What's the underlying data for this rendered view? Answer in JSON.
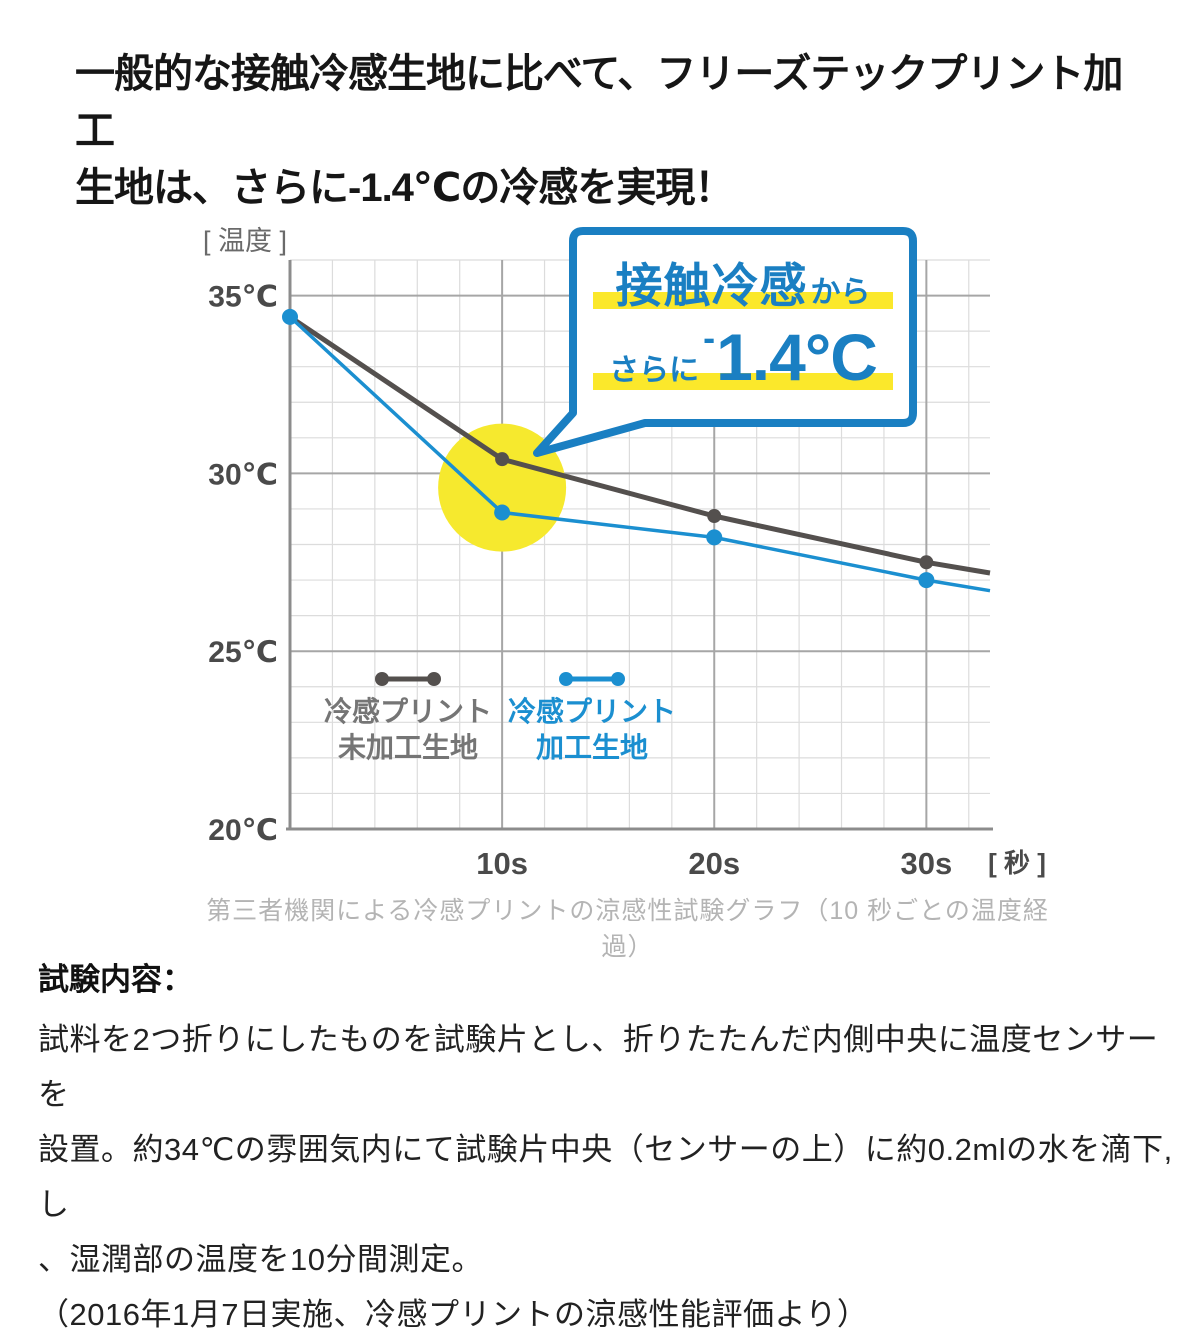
{
  "headline": {
    "lines": [
      "一般的な接触冷感生地に比べて、フリーズテックプリント加工",
      "生地は、さらに-1.4℃の冷感を実現！"
    ]
  },
  "chart_data": {
    "type": "line",
    "title": "",
    "y_unit_label": "[ 温度 ]",
    "x_unit_label": "[ 秒 ]",
    "x_range": [
      0,
      33
    ],
    "y_range": [
      20,
      36
    ],
    "x_minor_step": 2,
    "y_minor_step": 1,
    "grid": "on",
    "x_ticks": [
      {
        "value": 10,
        "label": "10s"
      },
      {
        "value": 20,
        "label": "20s"
      },
      {
        "value": 30,
        "label": "30s"
      }
    ],
    "y_ticks": [
      {
        "value": 35,
        "label": "35℃"
      },
      {
        "value": 30,
        "label": "30℃"
      },
      {
        "value": 25,
        "label": "25℃"
      },
      {
        "value": 20,
        "label": "20℃"
      }
    ],
    "series": [
      {
        "name": "冷感プリント 未加工生地",
        "color": "#54504e",
        "line_width": 5,
        "x": [
          0,
          10,
          20,
          30,
          33
        ],
        "values": [
          34.4,
          30.4,
          28.8,
          27.5,
          27.2
        ],
        "marker_x": [
          0,
          10,
          20,
          30
        ],
        "marker_radius": 7
      },
      {
        "name": "冷感プリント 加工生地",
        "color": "#1b8fd0",
        "line_width": 3.5,
        "x": [
          0,
          10,
          20,
          30,
          33
        ],
        "values": [
          34.4,
          28.9,
          28.2,
          27.0,
          26.7
        ],
        "marker_x": [
          0,
          10,
          20,
          30
        ],
        "marker_radius": 8
      }
    ],
    "highlight_circle": {
      "x": 10,
      "y": 29.6,
      "radius_px": 64,
      "color": "#f6e92e"
    },
    "legend_position": "inside-bottom-left",
    "caption": "第三者機関による冷感プリントの涼感性試験グラフ（10 秒ごとの温度経過）"
  },
  "legend": [
    {
      "line1": "冷感プリント",
      "line2": "未加工生地",
      "marker_color": "#54504e",
      "text_color": "#757575"
    },
    {
      "line1": "冷感プリント",
      "line2": "加工生地",
      "marker_color": "#1b8fd0",
      "text_color": "#1b8fd0"
    }
  ],
  "callout": {
    "line1_main": "接触冷感",
    "line1_suffix": "から",
    "line2_prefix": "さらに",
    "line2_minus": "-",
    "line2_number": "1.4°C",
    "border_color": "#1a7fc2",
    "text_color": "#1a7fc2",
    "highlight_color": "#fbe82b",
    "fill_color": "#ffffff"
  },
  "test_details": {
    "title": "試験内容：",
    "lines": [
      "試料を2つ折りにしたものを試験片とし、折りたたんだ内側中央に温度センサーを",
      "設置。約34℃の雰囲気内にて試験片中央（センサーの上）に約0.2mlの水を滴下,し",
      "、湿潤部の温度を10分間測定。",
      "（2016年1月7日実施、冷感プリントの涼感性能評価より）"
    ]
  },
  "colors": {
    "grid_minor": "#dcdcdc",
    "grid_major": "#a6a6a6",
    "axis": "#8c8c8c",
    "tick_label": "#4a4a4a",
    "unit_label": "#6a6a6a"
  }
}
